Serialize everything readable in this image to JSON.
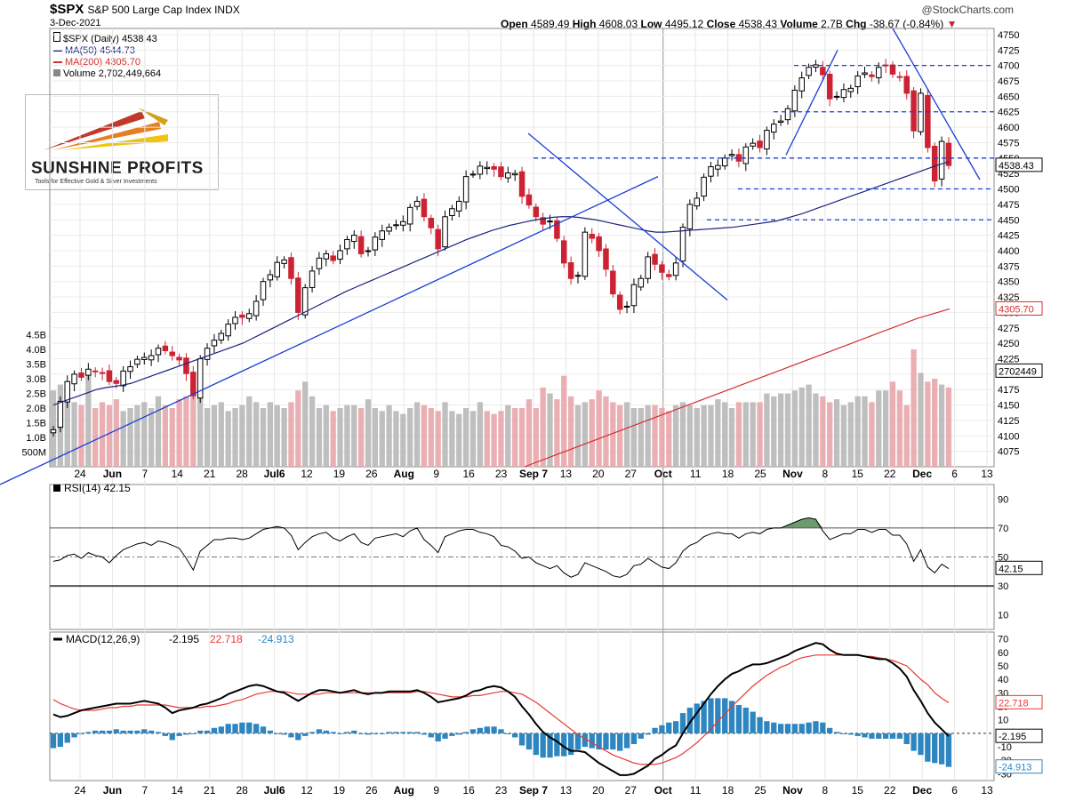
{
  "header": {
    "symbol": "$SPX",
    "description": "S&P 500 Large Cap Index INDX",
    "date": "3-Dec-2021",
    "watermark": "@StockCharts.com",
    "open_label": "Open",
    "open": "4589.49",
    "high_label": "High",
    "high": "4608.03",
    "low_label": "Low",
    "low": "4495.12",
    "close_label": "Close",
    "close": "4538.43",
    "volume_label": "Volume",
    "volume": "2.7B",
    "chg_label": "Chg",
    "chg": "-38.67 (-0.84%)"
  },
  "legend": {
    "price": "$SPX (Daily) 4538.43",
    "ma50": "MA(50) 4544.73",
    "ma200": "MA(200) 4305.70",
    "volume": "Volume 2,702,449,664"
  },
  "logo": {
    "name": "SUNSHINE PROFITS",
    "tagline": "Tools for Effective Gold & Silver Investments"
  },
  "colors": {
    "up": "#000000",
    "down": "#cc2233",
    "ma50": "#1a237e",
    "ma200": "#d32f2f",
    "trend": "#1a3fd6",
    "macd_hist": "#2e86c1",
    "rsi_fill": "#3c7a3c"
  },
  "chart_data": [
    {
      "type": "candlestick",
      "title": "$SPX S&P 500 Large Cap Index INDX",
      "ylim": [
        4050,
        4760
      ],
      "y_ticks": [
        4075,
        4100,
        4125,
        4150,
        4175,
        4200,
        4225,
        4250,
        4275,
        4300,
        4325,
        4350,
        4375,
        4400,
        4425,
        4450,
        4475,
        4500,
        4525,
        4550,
        4575,
        4600,
        4625,
        4650,
        4675,
        4700,
        4725,
        4750
      ],
      "x_ticks": [
        "24",
        "Jun",
        "7",
        "14",
        "21",
        "28",
        "Jul6",
        "12",
        "19",
        "26",
        "Aug",
        "9",
        "16",
        "23",
        "Sep 7",
        "13",
        "20",
        "27",
        "Oct",
        "11",
        "18",
        "25",
        "Nov",
        "8",
        "15",
        "22",
        "Dec",
        "6",
        "13"
      ],
      "last_close": 4538.43,
      "ma50_last": 4544.73,
      "ma200_last": 4305.7,
      "support_levels": [
        4700,
        4625,
        4550,
        4500,
        4450
      ],
      "close_path": [
        4110,
        4156,
        4188,
        4200,
        4195,
        4208,
        4205,
        4202,
        4188,
        4185,
        4205,
        4212,
        4224,
        4227,
        4230,
        4242,
        4238,
        4230,
        4223,
        4201,
        4165,
        4225,
        4242,
        4255,
        4266,
        4281,
        4292,
        4292,
        4298,
        4318,
        4350,
        4361,
        4381,
        4385,
        4355,
        4300,
        4340,
        4367,
        4388,
        4395,
        4384,
        4400,
        4418,
        4425,
        4395,
        4400,
        4422,
        4432,
        4438,
        4442,
        4447,
        4470,
        4480,
        4455,
        4437,
        4403,
        4455,
        4468,
        4480,
        4520,
        4524,
        4537,
        4535,
        4532,
        4520,
        4526,
        4525,
        4488,
        4474,
        4455,
        4443,
        4448,
        4420,
        4380,
        4355,
        4360,
        4430,
        4420,
        4400,
        4370,
        4330,
        4305,
        4310,
        4345,
        4355,
        4390,
        4378,
        4365,
        4358,
        4380,
        4438,
        4475,
        4485,
        4519,
        4536,
        4538,
        4550,
        4556,
        4545,
        4568,
        4574,
        4567,
        4595,
        4605,
        4610,
        4630,
        4660,
        4680,
        4697,
        4701,
        4685,
        4646,
        4650,
        4661,
        4663,
        4683,
        4688,
        4682,
        4697,
        4700,
        4686,
        4682,
        4655,
        4594,
        4655,
        4567,
        4513,
        4577,
        4538
      ],
      "ma50": [
        4150,
        4155,
        4160,
        4165,
        4170,
        4175,
        4178,
        4180,
        4182,
        4185,
        4190,
        4195,
        4200,
        4205,
        4210,
        4215,
        4220,
        4225,
        4230,
        4235,
        4240,
        4245,
        4250,
        4257,
        4264,
        4271,
        4278,
        4285,
        4292,
        4299,
        4306,
        4313,
        4320,
        4327,
        4334,
        4340,
        4346,
        4352,
        4358,
        4364,
        4370,
        4376,
        4382,
        4388,
        4394,
        4400,
        4406,
        4412,
        4418,
        4423,
        4428,
        4433,
        4437,
        4441,
        4444,
        4447,
        4450,
        4452,
        4454,
        4455,
        4455,
        4454,
        4452,
        4450,
        4447,
        4444,
        4441,
        4438,
        4435,
        4432,
        4430,
        4430,
        4431,
        4432,
        4433,
        4434,
        4435,
        4436,
        4437,
        4438,
        4440,
        4442,
        4444,
        4446,
        4448,
        4452,
        4456,
        4460,
        4465,
        4470,
        4475,
        4480,
        4485,
        4490,
        4495,
        4500,
        4505,
        4510,
        4515,
        4520,
        4525,
        4530,
        4535,
        4540,
        4544
      ],
      "ma200": [
        4050,
        4070,
        4090,
        4110,
        4130,
        4150,
        4170,
        4190,
        4210,
        4230,
        4250,
        4270,
        4290,
        4305.7
      ],
      "volume_ylim": [
        0,
        5.0
      ],
      "volume_ticks": [
        "500M",
        "1.0B",
        "1.5B",
        "2.0B",
        "2.5B",
        "3.0B",
        "3.5B",
        "4.0B",
        "4.5B"
      ],
      "volume_last": "2702449",
      "volume_values_b": [
        2.6,
        2.8,
        2.3,
        2.2,
        2.1,
        3.2,
        2.0,
        2.2,
        2.1,
        2.3,
        1.9,
        2.0,
        2.1,
        2.2,
        2.0,
        2.4,
        2.1,
        2.0,
        2.3,
        2.4,
        2.8,
        2.6,
        2.0,
        2.1,
        2.2,
        1.9,
        2.0,
        2.1,
        2.4,
        2.2,
        2.0,
        2.2,
        2.1,
        2.0,
        2.2,
        2.6,
        2.9,
        2.4,
        2.0,
        2.1,
        1.9,
        2.0,
        2.1,
        2.1,
        2.0,
        2.3,
        2.0,
        1.9,
        2.1,
        1.9,
        1.8,
        2.0,
        2.2,
        2.1,
        2.0,
        1.9,
        2.2,
        1.9,
        1.8,
        2.0,
        1.9,
        2.2,
        1.9,
        1.8,
        1.9,
        2.1,
        2.0,
        2.0,
        2.3,
        2.0,
        2.7,
        2.5,
        2.3,
        3.1,
        2.4,
        2.1,
        2.2,
        2.3,
        2.6,
        2.4,
        2.2,
        2.1,
        2.2,
        2.0,
        2.0,
        2.1,
        2.1,
        2.0,
        1.9,
        2.1,
        2.2,
        2.1,
        2.0,
        2.1,
        2.1,
        2.3,
        2.2,
        2.0,
        2.2,
        2.2,
        2.2,
        2.2,
        2.5,
        2.4,
        2.5,
        2.5,
        2.6,
        2.7,
        2.8,
        2.5,
        2.4,
        2.2,
        2.3,
        2.1,
        2.2,
        2.4,
        2.4,
        2.2,
        2.6,
        2.6,
        2.9,
        2.6,
        2.1,
        4.0,
        3.2,
        2.9,
        3.0,
        2.8,
        2.7
      ]
    },
    {
      "type": "line",
      "title": "RSI(14) 42.15",
      "ylim": [
        0,
        100
      ],
      "y_ticks": [
        10,
        30,
        50,
        70,
        90
      ],
      "overbought": 70,
      "oversold": 30,
      "last": 42.15,
      "values": [
        47,
        48,
        51,
        52,
        49,
        53,
        51,
        50,
        46,
        51,
        55,
        57,
        59,
        60,
        58,
        61,
        60,
        58,
        56,
        49,
        41,
        54,
        58,
        62,
        62,
        63,
        63,
        62,
        63,
        66,
        69,
        70,
        71,
        70,
        65,
        55,
        60,
        64,
        66,
        67,
        63,
        61,
        64,
        66,
        60,
        58,
        63,
        64,
        65,
        66,
        64,
        68,
        70,
        62,
        58,
        53,
        64,
        66,
        68,
        69,
        69,
        67,
        66,
        64,
        58,
        57,
        54,
        49,
        50,
        46,
        44,
        42,
        44,
        39,
        36,
        38,
        46,
        44,
        42,
        40,
        37,
        36,
        38,
        44,
        45,
        49,
        46,
        43,
        42,
        46,
        54,
        58,
        60,
        64,
        66,
        67,
        66,
        66,
        63,
        66,
        67,
        66,
        69,
        70,
        70,
        72,
        74,
        76,
        77,
        76,
        68,
        62,
        64,
        66,
        66,
        69,
        69,
        67,
        69,
        69,
        65,
        65,
        59,
        47,
        55,
        43,
        39,
        45,
        42
      ]
    },
    {
      "type": "line",
      "title": "MACD(12,26,9)",
      "series_labels": [
        "-2.195",
        "22.718",
        "-24.913"
      ],
      "ylim": [
        -35,
        75
      ],
      "y_ticks": [
        -30,
        -20,
        -10,
        10,
        20,
        30,
        40,
        50,
        60,
        70
      ],
      "macd_last": -2.195,
      "signal_last": 22.718,
      "hist_last": -24.913,
      "macd": [
        14,
        12,
        13,
        15,
        17,
        18,
        19,
        20,
        21,
        22,
        22,
        22,
        23,
        24,
        23,
        22,
        19,
        15,
        17,
        18,
        19,
        21,
        22,
        24,
        26,
        29,
        31,
        33,
        35,
        36,
        35,
        33,
        31,
        30,
        27,
        24,
        27,
        30,
        32,
        32,
        31,
        30,
        31,
        32,
        30,
        29,
        30,
        30,
        31,
        31,
        31,
        31,
        32,
        30,
        27,
        23,
        24,
        25,
        26,
        28,
        31,
        32,
        34,
        35,
        34,
        31,
        27,
        20,
        14,
        7,
        1,
        -3,
        -6,
        -10,
        -13,
        -13,
        -14,
        -18,
        -22,
        -25,
        -28,
        -31,
        -31,
        -30,
        -27,
        -24,
        -19,
        -16,
        -12,
        -9,
        0,
        8,
        15,
        22,
        29,
        35,
        40,
        44,
        46,
        49,
        51,
        51,
        52,
        54,
        56,
        58,
        61,
        63,
        65,
        67,
        66,
        62,
        59,
        58,
        58,
        58,
        57,
        56,
        55,
        55,
        52,
        48,
        42,
        32,
        24,
        15,
        8,
        3,
        -2.195
      ],
      "signal": [
        25,
        22,
        20,
        18,
        17,
        17,
        17,
        18,
        19,
        19,
        20,
        20,
        21,
        21,
        21,
        21,
        21,
        20,
        19,
        19,
        19,
        19,
        20,
        20,
        21,
        22,
        24,
        25,
        27,
        29,
        30,
        31,
        31,
        31,
        30,
        29,
        29,
        29,
        29,
        30,
        30,
        30,
        30,
        30,
        30,
        30,
        30,
        30,
        30,
        30,
        30,
        30,
        31,
        31,
        30,
        29,
        28,
        27,
        27,
        27,
        28,
        28,
        29,
        30,
        31,
        31,
        30,
        29,
        26,
        23,
        19,
        15,
        11,
        7,
        3,
        -1,
        -4,
        -7,
        -10,
        -13,
        -16,
        -18,
        -20,
        -22,
        -23,
        -23,
        -23,
        -22,
        -20,
        -18,
        -15,
        -11,
        -7,
        -2,
        3,
        9,
        14,
        20,
        25,
        30,
        35,
        39,
        43,
        46,
        49,
        51,
        54,
        56,
        57,
        58,
        58,
        58,
        58,
        58,
        58,
        58,
        57,
        57,
        56,
        55,
        54,
        52,
        50,
        45,
        40,
        36,
        30,
        26,
        22.718
      ],
      "histogram": [
        -11,
        -10,
        -7,
        -3,
        0,
        1,
        2,
        2,
        2,
        3,
        2,
        2,
        2,
        3,
        2,
        1,
        -2,
        -5,
        -2,
        -1,
        0,
        2,
        2,
        4,
        5,
        7,
        7,
        8,
        8,
        7,
        5,
        2,
        0,
        -1,
        -3,
        -5,
        -2,
        1,
        3,
        2,
        1,
        0,
        1,
        2,
        0,
        -1,
        0,
        0,
        1,
        1,
        1,
        1,
        1,
        -1,
        -3,
        -6,
        -4,
        -2,
        -1,
        1,
        3,
        4,
        5,
        5,
        3,
        0,
        -3,
        -9,
        -12,
        -16,
        -18,
        -18,
        -17,
        -17,
        -16,
        -12,
        -10,
        -11,
        -12,
        -12,
        -12,
        -13,
        -11,
        -8,
        -4,
        -1,
        4,
        6,
        8,
        9,
        15,
        19,
        22,
        24,
        26,
        26,
        26,
        24,
        21,
        19,
        16,
        12,
        9,
        8,
        7,
        7,
        7,
        7,
        8,
        9,
        8,
        4,
        1,
        0,
        -1,
        -2,
        -3,
        -4,
        -4,
        -4,
        -4,
        -4,
        -8,
        -13,
        -16,
        -21,
        -22,
        -23,
        -24.913
      ]
    }
  ]
}
